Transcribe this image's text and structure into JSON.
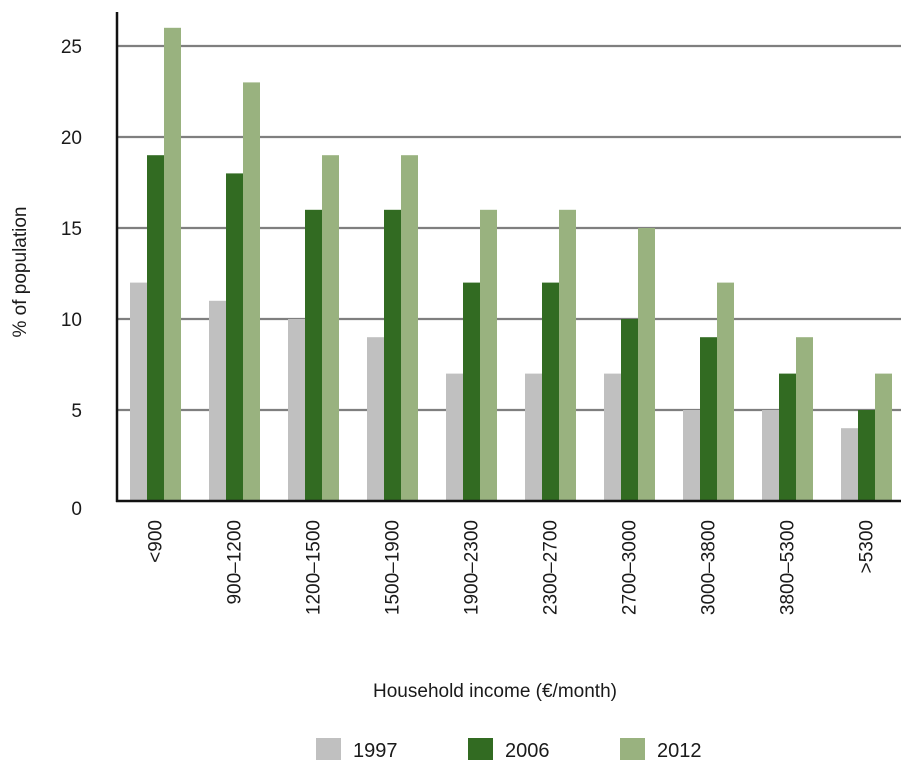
{
  "chart_data": {
    "type": "bar",
    "title": "",
    "xlabel": "Household income (€/month)",
    "ylabel": "% of population",
    "ylim": [
      0,
      25
    ],
    "yticks": [
      0,
      5,
      10,
      15,
      20,
      25
    ],
    "grid": true,
    "legend_position": "bottom",
    "categories": [
      "<900",
      "900–1200",
      "1200–1500",
      "1500–1900",
      "1900–2300",
      "2300–2700",
      "2700–3000",
      "3000–3800",
      "3800–5300",
      ">5300"
    ],
    "series": [
      {
        "name": "1997",
        "color": "#c0c0c0",
        "values": [
          12,
          11,
          10,
          9,
          7,
          7,
          7,
          5,
          5,
          4
        ]
      },
      {
        "name": "2006",
        "color": "#326b22",
        "values": [
          19,
          18,
          16,
          16,
          12,
          12,
          10,
          9,
          7,
          5
        ]
      },
      {
        "name": "2012",
        "color": "#99b27f",
        "values": [
          26,
          23,
          19,
          19,
          16,
          16,
          15,
          12,
          9,
          7
        ]
      }
    ]
  }
}
